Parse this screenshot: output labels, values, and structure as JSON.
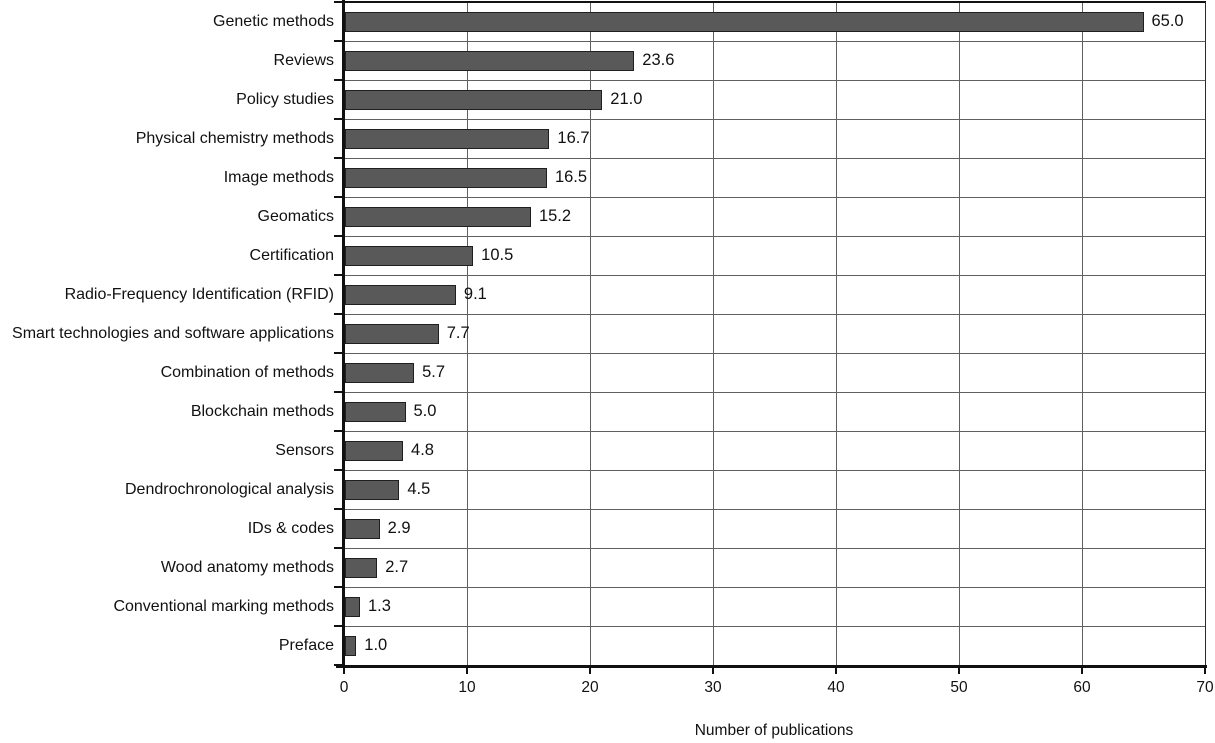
{
  "chart_data": {
    "type": "bar",
    "orientation": "horizontal",
    "title": "",
    "xlabel": "Number of publications",
    "ylabel": "",
    "xlim": [
      0,
      70
    ],
    "x_ticks": [
      0,
      10,
      20,
      30,
      40,
      50,
      60,
      70
    ],
    "grid": "vertical major gridlines every 10 units; horizontal lines at category boundaries",
    "legend": "none",
    "categories": [
      "Genetic methods",
      "Reviews",
      "Policy studies",
      "Physical chemistry methods",
      "Image methods",
      "Geomatics",
      "Certification",
      "Radio-Frequency Identification (RFID)",
      "Smart technologies and software applications",
      "Combination of methods",
      "Blockchain methods",
      "Sensors",
      "Dendrochronological analysis",
      "IDs & codes",
      "Wood anatomy methods",
      "Conventional marking methods",
      "Preface"
    ],
    "values": [
      65.0,
      23.6,
      21.0,
      16.7,
      16.5,
      15.2,
      10.5,
      9.1,
      7.7,
      5.7,
      5.0,
      4.8,
      4.5,
      2.9,
      2.7,
      1.3,
      1.0
    ],
    "value_labels": [
      "65.0",
      "23.6",
      "21.0",
      "16.7",
      "16.5",
      "15.2",
      "10.5",
      "9.1",
      "7.7",
      "5.7",
      "5.0",
      "4.8",
      "4.5",
      "2.9",
      "2.7",
      "1.3",
      "1.0"
    ],
    "colors": {
      "bar_fill": "#595959",
      "bar_border": "#1f1f1f",
      "gridline": "#606060",
      "row_divider": "#8f8f8f",
      "axis": "#111111",
      "text": "#111111",
      "background": "#ffffff"
    }
  }
}
